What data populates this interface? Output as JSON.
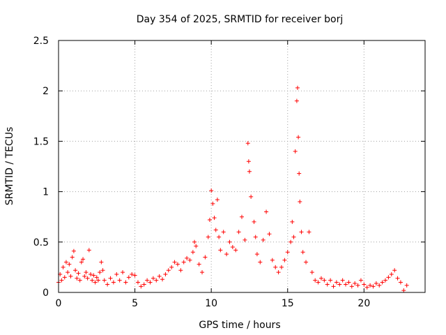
{
  "chart_data": {
    "type": "scatter",
    "title": "Day 354 of 2025, SRMTID for receiver borj",
    "xlabel": "GPS time / hours",
    "ylabel": "SRMTID / TECUs",
    "xlim": [
      0,
      24
    ],
    "ylim": [
      0,
      2.5
    ],
    "x_ticks": [
      0,
      5,
      10,
      15,
      20
    ],
    "x_tick_labels": [
      "0",
      "5",
      "10",
      "15",
      "20"
    ],
    "y_ticks": [
      0,
      0.5,
      1,
      1.5,
      2,
      2.5
    ],
    "y_tick_labels": [
      "0",
      "0.5",
      "1",
      "1.5",
      "2",
      "2.5"
    ],
    "grid": true,
    "marker": "+",
    "series": [
      {
        "name": "SRMTID",
        "color": "#ff0000",
        "points": [
          [
            0.0,
            0.1
          ],
          [
            0.1,
            0.18
          ],
          [
            0.2,
            0.12
          ],
          [
            0.3,
            0.25
          ],
          [
            0.4,
            0.15
          ],
          [
            0.5,
            0.3
          ],
          [
            0.6,
            0.2
          ],
          [
            0.7,
            0.28
          ],
          [
            0.8,
            0.16
          ],
          [
            0.9,
            0.35
          ],
          [
            1.0,
            0.41
          ],
          [
            1.1,
            0.22
          ],
          [
            1.2,
            0.14
          ],
          [
            1.3,
            0.19
          ],
          [
            1.4,
            0.12
          ],
          [
            1.5,
            0.3
          ],
          [
            1.6,
            0.33
          ],
          [
            1.7,
            0.16
          ],
          [
            1.8,
            0.2
          ],
          [
            1.9,
            0.14
          ],
          [
            2.0,
            0.42
          ],
          [
            2.1,
            0.18
          ],
          [
            2.2,
            0.12
          ],
          [
            2.3,
            0.17
          ],
          [
            2.4,
            0.1
          ],
          [
            2.5,
            0.15
          ],
          [
            2.6,
            0.12
          ],
          [
            2.7,
            0.2
          ],
          [
            2.8,
            0.3
          ],
          [
            2.9,
            0.22
          ],
          [
            3.0,
            0.12
          ],
          [
            3.2,
            0.08
          ],
          [
            3.4,
            0.14
          ],
          [
            3.6,
            0.1
          ],
          [
            3.8,
            0.18
          ],
          [
            4.0,
            0.12
          ],
          [
            4.2,
            0.2
          ],
          [
            4.4,
            0.1
          ],
          [
            4.6,
            0.15
          ],
          [
            4.8,
            0.18
          ],
          [
            5.0,
            0.17
          ],
          [
            5.2,
            0.1
          ],
          [
            5.4,
            0.06
          ],
          [
            5.6,
            0.08
          ],
          [
            5.8,
            0.12
          ],
          [
            6.0,
            0.1
          ],
          [
            6.2,
            0.14
          ],
          [
            6.4,
            0.12
          ],
          [
            6.6,
            0.16
          ],
          [
            6.8,
            0.13
          ],
          [
            7.0,
            0.18
          ],
          [
            7.2,
            0.22
          ],
          [
            7.4,
            0.25
          ],
          [
            7.6,
            0.3
          ],
          [
            7.8,
            0.28
          ],
          [
            8.0,
            0.22
          ],
          [
            8.2,
            0.3
          ],
          [
            8.4,
            0.34
          ],
          [
            8.6,
            0.32
          ],
          [
            8.8,
            0.4
          ],
          [
            8.9,
            0.5
          ],
          [
            9.0,
            0.46
          ],
          [
            9.2,
            0.28
          ],
          [
            9.4,
            0.2
          ],
          [
            9.6,
            0.35
          ],
          [
            9.8,
            0.55
          ],
          [
            9.9,
            0.72
          ],
          [
            10.0,
            1.01
          ],
          [
            10.1,
            0.88
          ],
          [
            10.2,
            0.74
          ],
          [
            10.3,
            0.62
          ],
          [
            10.4,
            0.92
          ],
          [
            10.5,
            0.55
          ],
          [
            10.6,
            0.42
          ],
          [
            10.8,
            0.6
          ],
          [
            11.0,
            0.38
          ],
          [
            11.2,
            0.5
          ],
          [
            11.4,
            0.45
          ],
          [
            11.6,
            0.42
          ],
          [
            11.8,
            0.6
          ],
          [
            12.0,
            0.75
          ],
          [
            12.2,
            0.52
          ],
          [
            12.4,
            1.48
          ],
          [
            12.45,
            1.3
          ],
          [
            12.5,
            1.2
          ],
          [
            12.6,
            0.95
          ],
          [
            12.8,
            0.7
          ],
          [
            12.9,
            0.55
          ],
          [
            13.0,
            0.38
          ],
          [
            13.2,
            0.3
          ],
          [
            13.4,
            0.52
          ],
          [
            13.6,
            0.8
          ],
          [
            13.8,
            0.58
          ],
          [
            14.0,
            0.32
          ],
          [
            14.2,
            0.25
          ],
          [
            14.4,
            0.2
          ],
          [
            14.6,
            0.25
          ],
          [
            14.8,
            0.32
          ],
          [
            15.0,
            0.4
          ],
          [
            15.2,
            0.5
          ],
          [
            15.3,
            0.7
          ],
          [
            15.4,
            0.55
          ],
          [
            15.5,
            1.4
          ],
          [
            15.6,
            1.9
          ],
          [
            15.65,
            2.03
          ],
          [
            15.7,
            1.54
          ],
          [
            15.75,
            1.18
          ],
          [
            15.8,
            0.9
          ],
          [
            15.9,
            0.6
          ],
          [
            16.0,
            0.4
          ],
          [
            16.2,
            0.3
          ],
          [
            16.4,
            0.6
          ],
          [
            16.6,
            0.2
          ],
          [
            16.8,
            0.12
          ],
          [
            17.0,
            0.1
          ],
          [
            17.2,
            0.14
          ],
          [
            17.4,
            0.12
          ],
          [
            17.6,
            0.08
          ],
          [
            17.8,
            0.12
          ],
          [
            18.0,
            0.06
          ],
          [
            18.2,
            0.1
          ],
          [
            18.4,
            0.08
          ],
          [
            18.6,
            0.12
          ],
          [
            18.8,
            0.08
          ],
          [
            19.0,
            0.1
          ],
          [
            19.2,
            0.06
          ],
          [
            19.4,
            0.09
          ],
          [
            19.6,
            0.07
          ],
          [
            19.8,
            0.12
          ],
          [
            20.0,
            0.08
          ],
          [
            20.2,
            0.05
          ],
          [
            20.4,
            0.07
          ],
          [
            20.6,
            0.06
          ],
          [
            20.8,
            0.09
          ],
          [
            21.0,
            0.07
          ],
          [
            21.2,
            0.1
          ],
          [
            21.4,
            0.12
          ],
          [
            21.6,
            0.15
          ],
          [
            21.8,
            0.18
          ],
          [
            22.0,
            0.22
          ],
          [
            22.2,
            0.14
          ],
          [
            22.4,
            0.1
          ],
          [
            22.6,
            0.02
          ],
          [
            22.8,
            0.07
          ]
        ]
      }
    ]
  }
}
